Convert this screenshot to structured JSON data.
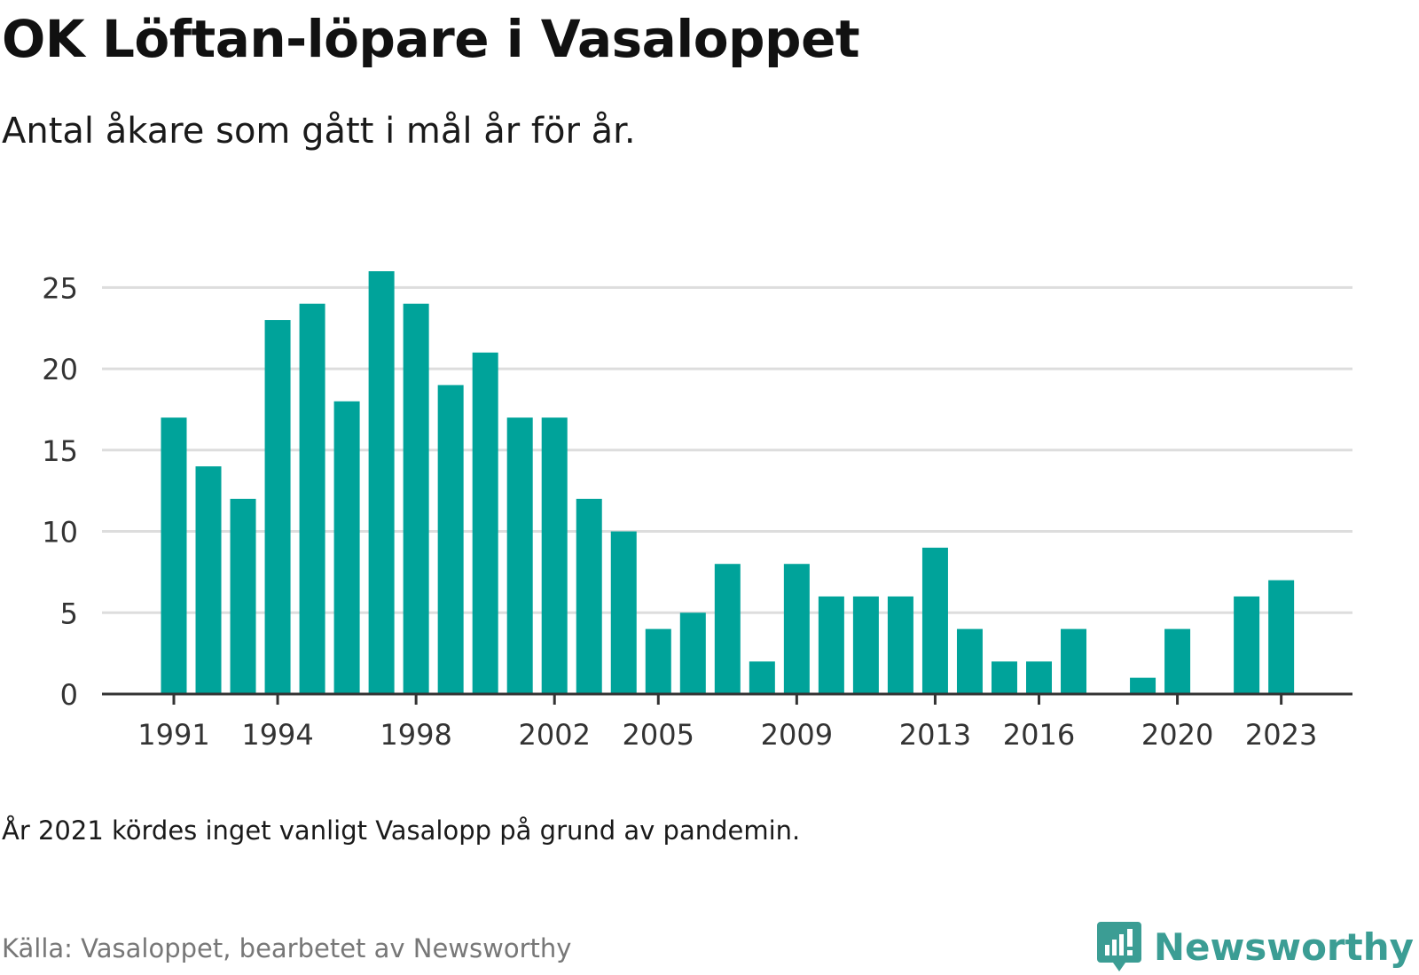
{
  "title": "OK Löftan-löpare i Vasaloppet",
  "subtitle": "Antal åkare som gått i mål år för år.",
  "note": "År 2021 kördes inget vanligt Vasalopp på grund av pandemin.",
  "source": "Källa: Vasaloppet, bearbetet av Newsworthy",
  "brand": {
    "name": "Newsworthy",
    "icon": "newsworthy-logo-icon"
  },
  "colors": {
    "bar": "#00a39a",
    "grid": "#dddddd",
    "axis": "#333333",
    "brand": "#3b9d94"
  },
  "chart_data": {
    "type": "bar",
    "categories": [
      "1991",
      "1992",
      "1993",
      "1994",
      "1995",
      "1996",
      "1997",
      "1998",
      "1999",
      "2000",
      "2001",
      "2002",
      "2003",
      "2004",
      "2005",
      "2006",
      "2007",
      "2008",
      "2009",
      "2010",
      "2011",
      "2012",
      "2013",
      "2014",
      "2015",
      "2016",
      "2017",
      "2018",
      "2019",
      "2020",
      "2021",
      "2022",
      "2023"
    ],
    "values": [
      17,
      14,
      12,
      23,
      24,
      18,
      26,
      24,
      19,
      21,
      17,
      17,
      12,
      10,
      4,
      5,
      8,
      2,
      8,
      6,
      6,
      6,
      9,
      4,
      2,
      2,
      4,
      0,
      1,
      4,
      0,
      6,
      7
    ],
    "x_tick_labels": [
      "1991",
      "1994",
      "1998",
      "2002",
      "2005",
      "2009",
      "2013",
      "2016",
      "2020",
      "2023"
    ],
    "y_ticks": [
      0,
      5,
      10,
      15,
      20,
      25
    ],
    "ylim": [
      0,
      26
    ],
    "grid": true,
    "title": "OK Löftan-löpare i Vasaloppet",
    "xlabel": "",
    "ylabel": ""
  }
}
